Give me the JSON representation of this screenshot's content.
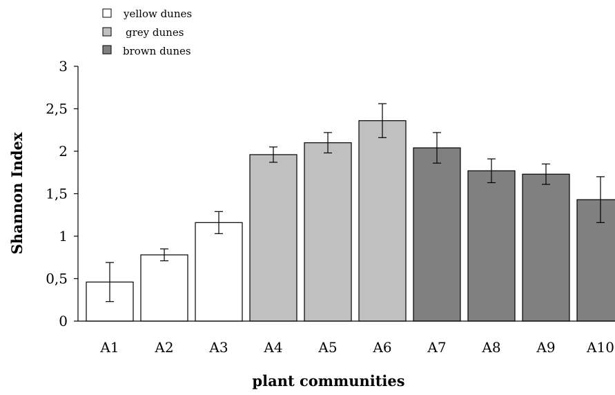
{
  "chart_data": {
    "type": "bar",
    "xlabel": "plant communities",
    "ylabel": "Shannon Index",
    "ylim": [
      0,
      3
    ],
    "yticks": [
      0,
      0.5,
      1,
      1.5,
      2,
      2.5,
      3
    ],
    "ytick_labels": [
      "0",
      "0,5",
      "1",
      "1,5",
      "2",
      "2,5",
      "3"
    ],
    "grid": false,
    "legend_position": "top-left",
    "categories": [
      "A1",
      "A2",
      "A3",
      "A4",
      "A5",
      "A6",
      "A7",
      "A8",
      "A9",
      "A10"
    ],
    "values": [
      0.46,
      0.78,
      1.16,
      1.96,
      2.1,
      2.36,
      2.04,
      1.77,
      1.73,
      1.43
    ],
    "errors": [
      0.23,
      0.07,
      0.13,
      0.09,
      0.12,
      0.2,
      0.18,
      0.14,
      0.12,
      0.27
    ],
    "groups": [
      "yellow dunes",
      "yellow dunes",
      "yellow dunes",
      "grey dunes",
      "grey dunes",
      "grey dunes",
      "brown dunes",
      "brown dunes",
      "brown dunes",
      "brown dunes"
    ],
    "legend": [
      {
        "name": "yellow dunes",
        "color": "#ffffff"
      },
      {
        "name": "grey dunes",
        "color": "#c0c0c0"
      },
      {
        "name": "brown dunes",
        "color": "#808080"
      }
    ]
  }
}
